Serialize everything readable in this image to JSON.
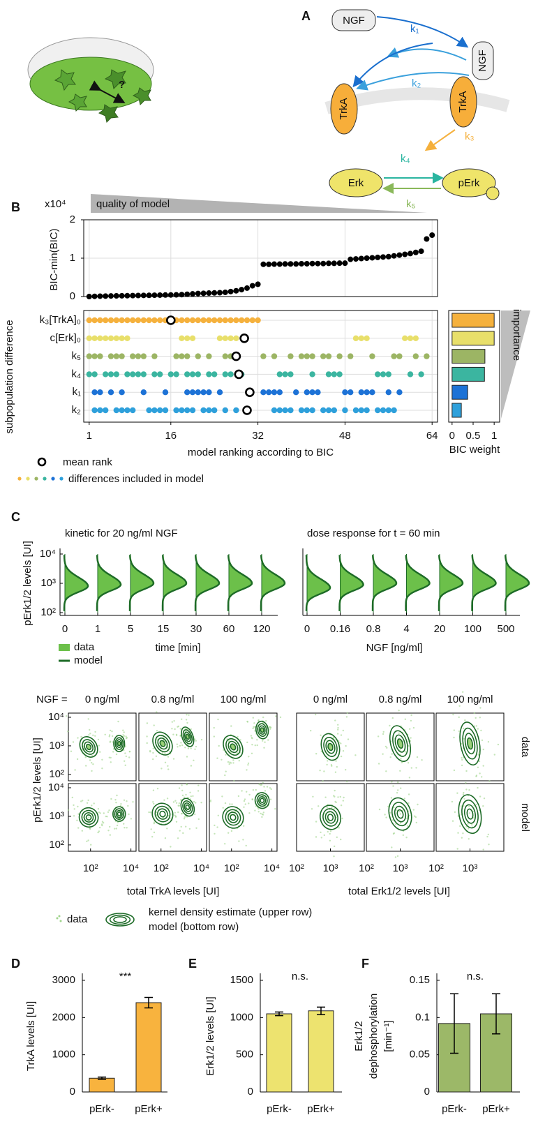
{
  "panel_labels": {
    "a": "A",
    "b": "B",
    "c": "C",
    "d": "D",
    "e": "E",
    "f": "F"
  },
  "diagram": {
    "ngf_free": "NGF",
    "ngf_bound": "NGF",
    "trka_left": "TrkA",
    "trka_right": "TrkA",
    "erk": "Erk",
    "perk": "pErk",
    "dish_mark": "?",
    "rates": [
      "k₁",
      "k₂",
      "k₃",
      "k₄",
      "k₅"
    ]
  },
  "chart_data": [
    {
      "type": "scatter",
      "banner": "quality of model",
      "multiplier": "x10⁴",
      "y_label": "BIC-min(BIC)",
      "x": [
        1,
        2,
        3,
        4,
        5,
        6,
        7,
        8,
        9,
        10,
        11,
        12,
        13,
        14,
        15,
        16,
        17,
        18,
        19,
        20,
        21,
        22,
        23,
        24,
        25,
        26,
        27,
        28,
        29,
        30,
        31,
        32,
        33,
        34,
        35,
        36,
        37,
        38,
        39,
        40,
        41,
        42,
        43,
        44,
        45,
        46,
        47,
        48,
        49,
        50,
        51,
        52,
        53,
        54,
        55,
        56,
        57,
        58,
        59,
        60,
        61,
        62,
        63,
        64
      ],
      "values": [
        0,
        0.005,
        0.01,
        0.012,
        0.015,
        0.018,
        0.02,
        0.022,
        0.025,
        0.027,
        0.03,
        0.032,
        0.035,
        0.037,
        0.04,
        0.042,
        0.045,
        0.05,
        0.06,
        0.07,
        0.08,
        0.085,
        0.09,
        0.095,
        0.1,
        0.11,
        0.13,
        0.15,
        0.18,
        0.22,
        0.28,
        0.32,
        0.84,
        0.84,
        0.845,
        0.845,
        0.85,
        0.85,
        0.85,
        0.855,
        0.855,
        0.86,
        0.86,
        0.86,
        0.865,
        0.865,
        0.87,
        0.87,
        0.97,
        0.98,
        0.99,
        1.0,
        1.01,
        1.02,
        1.03,
        1.04,
        1.06,
        1.08,
        1.1,
        1.12,
        1.15,
        1.18,
        1.5,
        1.6
      ],
      "color": "#000000",
      "xlim": [
        0,
        65
      ],
      "ylim": [
        0,
        2
      ],
      "yticks": [
        0,
        1,
        2
      ],
      "grid": true
    },
    {
      "type": "dotmatrix",
      "y_label": "subpopulation difference",
      "x_label": "model ranking according to BIC",
      "xlim": [
        0,
        65
      ],
      "xticks": [
        1,
        16,
        32,
        48,
        64
      ],
      "grid": true,
      "series": [
        {
          "name": "k₃[TrkA]₀",
          "color": "#f5b13d",
          "ranks": [
            1,
            2,
            3,
            4,
            5,
            6,
            7,
            8,
            9,
            10,
            11,
            12,
            13,
            14,
            15,
            16,
            17,
            18,
            19,
            20,
            21,
            22,
            23,
            24,
            25,
            26,
            27,
            28,
            29,
            30,
            31,
            32
          ],
          "mean_rank": 16
        },
        {
          "name": "c[Erk]₀",
          "color": "#e8df6a",
          "ranks": [
            1,
            2,
            3,
            4,
            5,
            6,
            7,
            8,
            18,
            19,
            20,
            25,
            26,
            27,
            28,
            50,
            51,
            52,
            59,
            60,
            61
          ],
          "mean_rank": 29.5
        },
        {
          "name": "k₅",
          "color": "#9cb564",
          "ranks": [
            1,
            2,
            3,
            5,
            6,
            7,
            9,
            10,
            11,
            13,
            17,
            18,
            19,
            21,
            23,
            26,
            27,
            33,
            35,
            38,
            40,
            41,
            42,
            44,
            45,
            47,
            49,
            53,
            57,
            58,
            61,
            63
          ],
          "mean_rank": 28
        },
        {
          "name": "k₄",
          "color": "#3bb5a0",
          "ranks": [
            1,
            2,
            4,
            5,
            6,
            8,
            9,
            10,
            11,
            13,
            14,
            16,
            17,
            19,
            20,
            21,
            23,
            24,
            26,
            27,
            29,
            36,
            37,
            38,
            42,
            45,
            46,
            47,
            54,
            55,
            56,
            60,
            62
          ],
          "mean_rank": 28.5
        },
        {
          "name": "k₁",
          "color": "#1d72d6",
          "ranks": [
            2,
            3,
            5,
            7,
            11,
            15,
            19,
            20,
            21,
            22,
            23,
            25,
            33,
            34,
            35,
            36,
            39,
            41,
            42,
            43,
            48,
            49,
            51,
            52,
            53,
            56,
            58
          ],
          "mean_rank": 30.5
        },
        {
          "name": "k₂",
          "color": "#2ea0db",
          "ranks": [
            2,
            3,
            4,
            6,
            7,
            8,
            9,
            12,
            13,
            14,
            15,
            17,
            18,
            19,
            20,
            22,
            23,
            24,
            26,
            28,
            35,
            36,
            37,
            38,
            40,
            41,
            42,
            44,
            45,
            46,
            48,
            50,
            51,
            52,
            54,
            55,
            56,
            57
          ],
          "mean_rank": 30
        }
      ],
      "legend": {
        "mean_rank": "mean rank",
        "included": "differences included in model"
      }
    },
    {
      "type": "hbar",
      "x_label": "BIC weight",
      "side_label": "importance",
      "values": [
        1,
        1,
        0.78,
        0.77,
        0.37,
        0.22
      ],
      "colors": [
        "#f5b13d",
        "#e8df6a",
        "#9cb564",
        "#3bb5a0",
        "#1d72d6",
        "#2ea0db"
      ],
      "xlim": [
        -0.08,
        1.13
      ],
      "xticks": [
        0,
        0.5,
        1
      ]
    },
    {
      "type": "violin",
      "title": "kinetic for 20 ng/ml NGF",
      "categories": [
        "0",
        "1",
        "5",
        "15",
        "30",
        "60",
        "120"
      ],
      "modes": [
        800,
        900,
        1000,
        1000,
        1000,
        1000,
        1000
      ],
      "x_label": "time [min]",
      "y_label": "pErk1/2 levels [UI]",
      "log_y": true,
      "ylim": [
        100,
        10000
      ],
      "yticks": [
        {
          "value": 100,
          "label": "10²"
        },
        {
          "value": 1000,
          "label": "10³"
        },
        {
          "value": 10000,
          "label": "10⁴"
        }
      ],
      "legend": [
        {
          "name": "data",
          "color": "#6cc04a"
        },
        {
          "name": "model",
          "color": "#1d6b27"
        }
      ]
    },
    {
      "type": "violin",
      "title": "dose response for t = 60 min",
      "categories": [
        "0",
        "0.16",
        "0.8",
        "4",
        "20",
        "100",
        "500"
      ],
      "modes": [
        700,
        900,
        1000,
        1000,
        1000,
        1000,
        1000
      ],
      "x_label": "NGF [ng/ml]",
      "log_y": true,
      "ylim": [
        100,
        10000
      ]
    },
    {
      "type": "contour",
      "prefix": "NGF =",
      "conditions": [
        "0 ng/ml",
        "0.8 ng/ml",
        "100 ng/ml"
      ],
      "row_labels": [
        "data",
        "model"
      ],
      "y_label": "pErk1/2 levels [UI]",
      "log": true,
      "ylim": [
        60,
        14000
      ],
      "yticks": [
        {
          "value": 100,
          "label": "10²"
        },
        {
          "value": 1000,
          "label": "10³"
        },
        {
          "value": 10000,
          "label": "10⁴"
        }
      ],
      "groups": [
        {
          "x_label": "total TrkA levels [UI]",
          "xlim": [
            8,
            18000
          ],
          "xticks": [
            {
              "value": 100,
              "label": "10²"
            },
            {
              "value": 10000,
              "label": "10⁴"
            }
          ]
        },
        {
          "x_label": "total Erk1/2 levels [UI]",
          "xlim": [
            100,
            10000
          ],
          "xticks": [
            {
              "value": 100,
              "label": "10²"
            },
            {
              "value": 1000,
              "label": "10³"
            }
          ]
        }
      ],
      "legend": {
        "points": "data",
        "contours": [
          "kernel density estimate (upper row)",
          "model (bottom row)"
        ]
      }
    },
    {
      "type": "bar",
      "y_label": [
        "TrkA levels [UI]"
      ],
      "categories": [
        "pErk-",
        "pErk+"
      ],
      "values": [
        370,
        2400
      ],
      "errors": [
        30,
        140
      ],
      "color": "#f8b33e",
      "ylim": [
        0,
        3000
      ],
      "yticks": [
        0,
        1000,
        2000,
        3000
      ],
      "annotation": "***"
    },
    {
      "type": "bar",
      "y_label": [
        "Erk1/2 levels [UI]"
      ],
      "categories": [
        "pErk-",
        "pErk+"
      ],
      "values": [
        1050,
        1090
      ],
      "errors": [
        25,
        50
      ],
      "color": "#ede36f",
      "ylim": [
        0,
        1500
      ],
      "yticks": [
        0,
        500,
        1000,
        1500
      ],
      "annotation": "n.s."
    },
    {
      "type": "bar",
      "y_label": [
        "Erk1/2",
        "dephosphorylation",
        "[min⁻¹]"
      ],
      "categories": [
        "pErk-",
        "pErk+"
      ],
      "values": [
        0.092,
        0.105
      ],
      "errors": [
        0.04,
        0.027
      ],
      "color": "#9cb868",
      "ylim": [
        0,
        0.15
      ],
      "yticks": [
        0,
        0.05,
        0.1,
        0.15
      ],
      "annotation": "n.s."
    }
  ]
}
